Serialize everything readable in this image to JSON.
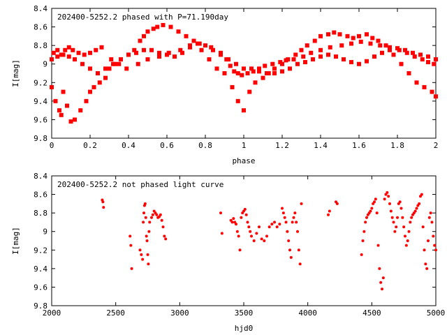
{
  "chart_data": [
    {
      "type": "scatter",
      "title": "202400-5252.2 phased with P=71.190day",
      "xlabel": "phase",
      "ylabel": "I[mag]",
      "xlim": [
        0,
        2
      ],
      "ylim": [
        9.8,
        8.4
      ],
      "y_inverted": true,
      "x_ticks": [
        0,
        0.2,
        0.4,
        0.6,
        0.8,
        1,
        1.2,
        1.4,
        1.6,
        1.8,
        2
      ],
      "x_tick_labels": [
        "0",
        "0.2",
        "0.4",
        "0.6",
        "0.8",
        "1",
        "1.2",
        "1.4",
        "1.6",
        "1.8",
        "2"
      ],
      "y_ticks": [
        8.4,
        8.6,
        8.8,
        9.0,
        9.2,
        9.4,
        9.6,
        9.8
      ],
      "y_tick_labels": [
        "8.4",
        "8.6",
        "8.8",
        "9",
        "9.2",
        "9.4",
        "9.6",
        "9.8"
      ],
      "grid": false,
      "marker": "square",
      "color": "#ff0000",
      "series": [
        {
          "x": [
            0.0,
            0.02,
            0.04,
            0.05,
            0.06,
            0.08,
            0.1,
            0.12,
            0.15,
            0.18,
            0.2,
            0.22,
            0.25,
            0.28,
            0.3,
            0.33,
            0.36,
            0.4,
            0.43,
            0.46,
            0.48,
            0.5,
            0.53,
            0.55,
            0.58,
            0.62,
            0.66,
            0.7,
            0.74,
            0.78,
            0.82,
            0.86,
            0.9,
            0.94,
            0.97,
            1.0,
            1.03,
            1.06,
            1.1,
            1.13,
            1.16,
            1.2,
            1.23,
            1.27,
            1.3,
            1.33,
            1.37,
            1.4,
            1.44,
            1.47,
            1.5,
            1.54,
            1.57,
            1.6,
            1.64,
            1.67,
            1.7,
            1.74,
            1.78,
            1.82,
            1.86,
            1.9,
            1.94,
            1.98,
            2.0,
            0.0,
            0.03,
            0.06,
            0.09,
            0.12,
            0.16,
            0.2,
            0.24,
            0.28,
            0.32,
            0.36,
            0.4,
            0.44,
            0.48,
            0.52,
            0.56,
            0.6,
            0.64,
            0.68,
            0.72,
            0.76,
            0.8,
            0.84,
            0.88,
            0.92,
            0.96,
            1.0,
            1.04,
            1.08,
            1.12,
            1.16,
            1.2,
            1.24,
            1.28,
            1.32,
            1.36,
            1.4,
            1.44,
            1.48,
            1.52,
            1.56,
            1.6,
            1.64,
            1.68,
            1.72,
            1.76,
            1.8,
            1.84,
            1.88,
            1.92,
            1.96,
            2.0,
            0.01,
            0.03,
            0.05,
            0.07,
            0.09,
            0.11,
            0.14,
            0.17,
            0.2,
            0.23,
            0.26,
            0.31,
            0.35,
            0.39,
            0.45,
            0.5,
            0.56,
            0.61,
            0.67,
            0.72,
            0.77,
            0.83,
            0.88,
            0.91,
            0.93,
            0.95,
            0.97,
            0.99,
            1.02,
            1.05,
            1.08,
            1.11,
            1.15,
            1.19,
            1.22,
            1.26,
            1.31,
            1.35,
            1.4,
            1.45,
            1.51,
            1.56,
            1.61,
            1.66,
            1.71,
            1.76,
            1.81,
            1.85,
            1.89,
            1.93,
            1.96,
            1.99
          ],
          "y": [
            9.25,
            9.4,
            9.5,
            9.55,
            9.3,
            9.45,
            9.62,
            9.6,
            9.5,
            9.4,
            9.3,
            9.25,
            9.2,
            9.15,
            9.05,
            9.0,
            8.95,
            8.9,
            8.85,
            8.75,
            8.7,
            8.65,
            8.62,
            8.6,
            8.58,
            8.6,
            8.65,
            8.7,
            8.75,
            8.85,
            8.95,
            9.05,
            9.1,
            9.25,
            9.4,
            9.5,
            9.3,
            9.2,
            9.15,
            9.1,
            9.05,
            9.0,
            8.95,
            8.9,
            8.85,
            8.8,
            8.75,
            8.7,
            8.68,
            8.66,
            8.68,
            8.7,
            8.72,
            8.7,
            8.68,
            8.72,
            8.75,
            8.8,
            8.9,
            9.0,
            9.1,
            9.2,
            9.25,
            9.3,
            9.35,
            8.95,
            8.92,
            8.9,
            8.92,
            8.95,
            9.0,
            9.05,
            9.1,
            9.05,
            9.0,
            8.95,
            8.9,
            8.88,
            8.85,
            8.85,
            8.88,
            8.9,
            8.92,
            8.88,
            8.82,
            8.78,
            8.8,
            8.85,
            8.9,
            8.95,
            9.0,
            9.05,
            9.05,
            9.08,
            9.1,
            9.1,
            9.08,
            9.05,
            9.0,
            8.98,
            8.95,
            8.92,
            8.9,
            8.92,
            8.95,
            8.98,
            9.0,
            8.97,
            8.92,
            8.88,
            8.85,
            8.83,
            8.85,
            8.88,
            8.9,
            8.92,
            8.95,
            8.88,
            8.85,
            8.9,
            8.85,
            8.82,
            8.85,
            8.88,
            8.9,
            8.88,
            8.85,
            8.82,
            8.95,
            9.0,
            9.05,
            9.0,
            8.95,
            8.92,
            8.88,
            8.85,
            8.8,
            8.78,
            8.82,
            8.88,
            8.95,
            9.02,
            9.08,
            9.1,
            9.12,
            9.1,
            9.08,
            9.05,
            9.02,
            9.0,
            8.98,
            8.96,
            8.95,
            8.92,
            8.88,
            8.85,
            8.82,
            8.8,
            8.78,
            8.76,
            8.78,
            8.8,
            8.82,
            8.85,
            8.88,
            8.92,
            8.95,
            8.98,
            9.0
          ]
        }
      ]
    },
    {
      "type": "scatter",
      "title": "202400-5252.2 not phased light curve",
      "xlabel": "hjd0",
      "ylabel": "I[mag]",
      "xlim": [
        2000,
        5000
      ],
      "ylim": [
        9.8,
        8.4
      ],
      "y_inverted": true,
      "x_ticks": [
        2000,
        2500,
        3000,
        3500,
        4000,
        4500,
        5000
      ],
      "x_tick_labels": [
        "2000",
        "2500",
        "3000",
        "3500",
        "4000",
        "4500",
        "5000"
      ],
      "y_ticks": [
        8.4,
        8.6,
        8.8,
        9.0,
        9.2,
        9.4,
        9.6,
        9.8
      ],
      "y_tick_labels": [
        "8.4",
        "8.6",
        "8.8",
        "9",
        "9.2",
        "9.4",
        "9.6",
        "9.8"
      ],
      "grid": false,
      "marker": "dot",
      "color": "#ff0000",
      "series": [
        {
          "x": [
            2395,
            2400,
            2405,
            2612,
            2618,
            2625,
            2690,
            2700,
            2710,
            2715,
            2720,
            2725,
            2730,
            2735,
            2740,
            2745,
            2750,
            2755,
            2760,
            2765,
            2780,
            2790,
            2800,
            2810,
            2820,
            2830,
            2840,
            2850,
            2860,
            2870,
            2880,
            2890,
            3320,
            3330,
            3400,
            3410,
            3420,
            3430,
            3440,
            3450,
            3460,
            3470,
            3480,
            3490,
            3500,
            3510,
            3520,
            3530,
            3540,
            3550,
            3560,
            3580,
            3600,
            3620,
            3640,
            3660,
            3680,
            3700,
            3720,
            3740,
            3760,
            3780,
            3800,
            3810,
            3820,
            3830,
            3840,
            3850,
            3860,
            3870,
            3880,
            3890,
            3900,
            3910,
            3920,
            3930,
            3940,
            3950,
            4160,
            4170,
            4220,
            4230,
            4420,
            4430,
            4440,
            4450,
            4460,
            4470,
            4480,
            4490,
            4500,
            4510,
            4520,
            4530,
            4540,
            4550,
            4560,
            4570,
            4580,
            4590,
            4600,
            4610,
            4620,
            4630,
            4640,
            4650,
            4660,
            4670,
            4680,
            4690,
            4700,
            4710,
            4720,
            4730,
            4740,
            4750,
            4760,
            4770,
            4780,
            4790,
            4800,
            4810,
            4820,
            4830,
            4840,
            4850,
            4860,
            4870,
            4880,
            4890,
            4900,
            4910,
            4920,
            4930,
            4940,
            4950,
            4960,
            4970,
            4980,
            4990,
            5000
          ],
          "y": [
            8.66,
            8.68,
            8.74,
            9.05,
            9.15,
            9.4,
            9.2,
            9.25,
            9.3,
            8.9,
            8.8,
            8.72,
            8.7,
            8.85,
            9.05,
            9.1,
            9.25,
            9.35,
            9.0,
            8.9,
            8.85,
            8.82,
            8.78,
            8.8,
            8.82,
            8.85,
            8.84,
            8.82,
            8.88,
            8.95,
            9.05,
            9.08,
            8.8,
            9.02,
            8.88,
            8.9,
            8.86,
            8.9,
            8.92,
            9.0,
            9.05,
            9.2,
            8.85,
            8.8,
            8.78,
            8.76,
            8.82,
            8.9,
            8.95,
            9.0,
            9.05,
            9.1,
            9.02,
            8.95,
            9.08,
            9.1,
            9.05,
            8.95,
            8.92,
            8.9,
            8.95,
            8.92,
            8.75,
            8.8,
            8.85,
            8.9,
            9.0,
            9.1,
            9.2,
            9.28,
            8.9,
            8.85,
            8.8,
            8.9,
            9.0,
            9.2,
            9.35,
            8.7,
            8.82,
            8.78,
            8.68,
            8.7,
            9.25,
            9.1,
            9.0,
            8.9,
            8.85,
            8.82,
            8.8,
            8.78,
            8.75,
            8.7,
            8.68,
            8.65,
            8.8,
            9.15,
            9.4,
            9.55,
            9.62,
            9.5,
            8.65,
            8.6,
            8.58,
            8.62,
            8.7,
            8.78,
            8.85,
            8.9,
            9.0,
            8.95,
            8.85,
            8.7,
            8.68,
            8.75,
            8.85,
            8.95,
            9.05,
            9.15,
            9.1,
            9.0,
            8.9,
            8.85,
            8.82,
            8.8,
            8.78,
            8.75,
            8.72,
            8.7,
            8.62,
            8.6,
            8.95,
            9.2,
            9.35,
            9.4,
            9.1,
            8.85,
            8.8,
            8.9,
            9.05,
            9.15,
            9.2
          ]
        }
      ]
    }
  ]
}
